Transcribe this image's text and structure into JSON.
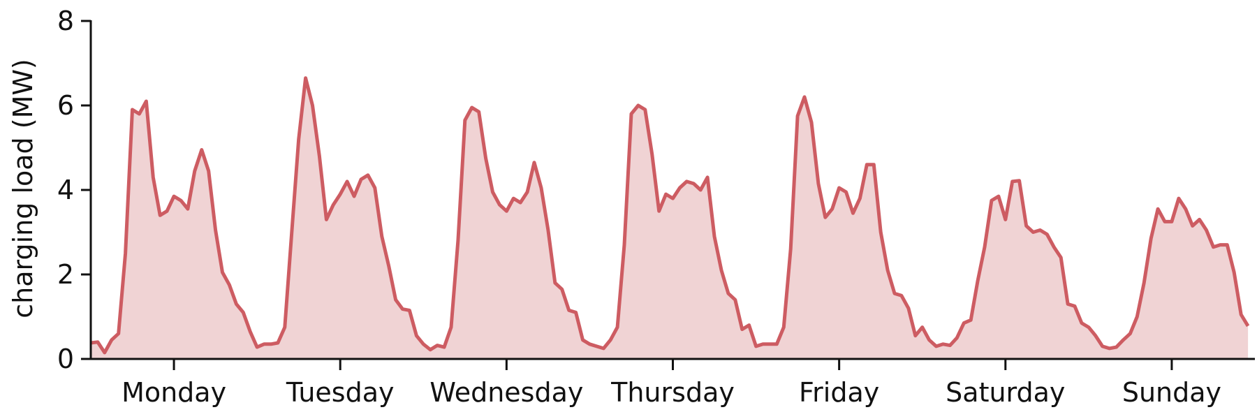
{
  "chart_data": {
    "type": "area",
    "title": "",
    "xlabel": "",
    "ylabel": "charging load (MW)",
    "ylim": [
      0,
      8
    ],
    "xlim": [
      0,
      168
    ],
    "grid": false,
    "y_ticks": [
      0,
      2,
      4,
      6,
      8
    ],
    "x_ticks": [
      {
        "value": 12,
        "label": "Monday"
      },
      {
        "value": 36,
        "label": "Tuesday"
      },
      {
        "value": 60,
        "label": "Wednesday"
      },
      {
        "value": 84,
        "label": "Thursday"
      },
      {
        "value": 108,
        "label": "Friday"
      },
      {
        "value": 132,
        "label": "Saturday"
      },
      {
        "value": 156,
        "label": "Sunday"
      }
    ],
    "colors": {
      "line": "#cd5c62",
      "fill": "#f0d3d4"
    },
    "series": [
      {
        "x": [
          0,
          1,
          2,
          3,
          4,
          5,
          6,
          7,
          8,
          9,
          10,
          11,
          12,
          13,
          14,
          15,
          16,
          17,
          18,
          19,
          20,
          21,
          22,
          23,
          24,
          25,
          26,
          27,
          28,
          29,
          30,
          31,
          32,
          33,
          34,
          35,
          36,
          37,
          38,
          39,
          40,
          41,
          42,
          43,
          44,
          45,
          46,
          47,
          48,
          49,
          50,
          51,
          52,
          53,
          54,
          55,
          56,
          57,
          58,
          59,
          60,
          61,
          62,
          63,
          64,
          65,
          66,
          67,
          68,
          69,
          70,
          71,
          72,
          73,
          74,
          75,
          76,
          77,
          78,
          79,
          80,
          81,
          82,
          83,
          84,
          85,
          86,
          87,
          88,
          89,
          90,
          91,
          92,
          93,
          94,
          95,
          96,
          97,
          98,
          99,
          100,
          101,
          102,
          103,
          104,
          105,
          106,
          107,
          108,
          109,
          110,
          111,
          112,
          113,
          114,
          115,
          116,
          117,
          118,
          119,
          120,
          121,
          122,
          123,
          124,
          125,
          126,
          127,
          128,
          129,
          130,
          131,
          132,
          133,
          134,
          135,
          136,
          137,
          138,
          139,
          140,
          141,
          142,
          143,
          144,
          145,
          146,
          147,
          148,
          149,
          150,
          151,
          152,
          153,
          154,
          155,
          156,
          157,
          158,
          159,
          160,
          161,
          162,
          163,
          164,
          165,
          166,
          167
        ],
        "values": [
          0.38,
          0.4,
          0.15,
          0.45,
          0.6,
          2.5,
          5.9,
          5.8,
          6.1,
          4.3,
          3.4,
          3.5,
          3.85,
          3.75,
          3.55,
          4.45,
          4.95,
          4.45,
          3.05,
          2.05,
          1.75,
          1.3,
          1.1,
          0.65,
          0.28,
          0.35,
          0.35,
          0.38,
          0.75,
          3.0,
          5.2,
          6.65,
          6.0,
          4.8,
          3.3,
          3.65,
          3.9,
          4.2,
          3.85,
          4.25,
          4.35,
          4.05,
          2.9,
          2.2,
          1.4,
          1.18,
          1.15,
          0.55,
          0.35,
          0.22,
          0.32,
          0.28,
          0.75,
          2.8,
          5.65,
          5.95,
          5.85,
          4.75,
          3.95,
          3.65,
          3.5,
          3.8,
          3.7,
          3.95,
          4.65,
          4.05,
          3.05,
          1.8,
          1.65,
          1.15,
          1.1,
          0.45,
          0.35,
          0.3,
          0.25,
          0.45,
          0.75,
          2.7,
          5.8,
          6.0,
          5.9,
          4.85,
          3.5,
          3.9,
          3.8,
          4.05,
          4.2,
          4.15,
          4.0,
          4.3,
          2.9,
          2.1,
          1.55,
          1.4,
          0.7,
          0.8,
          0.3,
          0.35,
          0.35,
          0.35,
          0.75,
          2.6,
          5.75,
          6.2,
          5.6,
          4.15,
          3.35,
          3.55,
          4.05,
          3.95,
          3.45,
          3.8,
          4.6,
          4.6,
          3.0,
          2.1,
          1.55,
          1.5,
          1.2,
          0.55,
          0.75,
          0.45,
          0.3,
          0.35,
          0.32,
          0.5,
          0.85,
          0.92,
          1.85,
          2.65,
          3.75,
          3.85,
          3.3,
          4.2,
          4.22,
          3.15,
          3.0,
          3.05,
          2.95,
          2.65,
          2.4,
          1.3,
          1.25,
          0.85,
          0.75,
          0.55,
          0.3,
          0.25,
          0.28,
          0.45,
          0.6,
          1.0,
          1.8,
          2.85,
          3.55,
          3.25,
          3.25,
          3.8,
          3.55,
          3.15,
          3.3,
          3.05,
          2.65,
          2.7,
          2.7,
          2.05,
          1.05,
          0.78
        ]
      }
    ]
  }
}
